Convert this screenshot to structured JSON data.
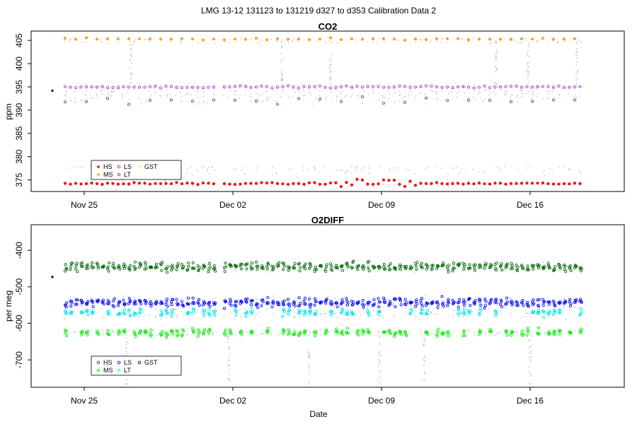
{
  "figure": {
    "title": "LMG   13-12    131123 to 131219    d327 to d353   Calibration Data 2",
    "xlabel": "Date",
    "x_ticks": [
      "Nov 25",
      "Dec 02",
      "Dec 09",
      "Dec 16"
    ]
  },
  "colors": {
    "HS": "#ff0000",
    "MS": "#ffa500",
    "LS": "#a020f0",
    "LT": "#8b3a3a",
    "GST": "#ffff00",
    "raw": "#bebebe",
    "O2_HS": "#006400",
    "O2_MS": "#00ee00",
    "O2_LS": "#0000ff",
    "O2_LT": "#00e5ee",
    "O2_GST": "#00008b"
  },
  "chart_data": [
    {
      "type": "scatter",
      "title": "CO2",
      "ylabel": "ppm",
      "xlim": [
        "2013-11-23",
        "2013-12-19"
      ],
      "ylim": [
        372.5,
        407
      ],
      "x_ticks": [
        "Nov 25",
        "Dec 02",
        "Dec 09",
        "Dec 16"
      ],
      "y_ticks": [
        375,
        380,
        385,
        390,
        395,
        400,
        405
      ],
      "grid": false,
      "legend": {
        "placement": "bottom-left",
        "entries": [
          "HS",
          "MS",
          "LS",
          "LT",
          "GST"
        ]
      },
      "series": [
        {
          "name": "HS",
          "color": "#ff0000",
          "approx_level": 374.2,
          "x_range": [
            "2013-11-24",
            "2013-12-19"
          ],
          "note_values": [
            375.0,
            374.8,
            373.9
          ]
        },
        {
          "name": "MS",
          "color": "#ffa500",
          "approx_level": 405.3,
          "x_range": [
            "2013-11-24",
            "2013-12-19"
          ]
        },
        {
          "name": "LS",
          "color": "#a020f0",
          "approx_level": 395.0,
          "x_range": [
            "2013-11-24",
            "2013-12-19"
          ]
        },
        {
          "name": "LT",
          "color": "#8b3a3a",
          "approx_level": 392.0,
          "x_range": [
            "2013-11-24",
            "2013-12-19"
          ]
        },
        {
          "name": "GST",
          "color": "#ffff00",
          "values": []
        }
      ],
      "extra_points": [
        {
          "x": "2013-11-23",
          "y": 394.2,
          "color": "#000000"
        }
      ]
    },
    {
      "type": "scatter",
      "title": "O2DIFF",
      "ylabel": "per meg",
      "xlim": [
        "2013-11-23",
        "2013-12-19"
      ],
      "ylim": [
        -775,
        -330
      ],
      "x_ticks": [
        "Nov 25",
        "Dec 02",
        "Dec 09",
        "Dec 16"
      ],
      "y_ticks": [
        -700,
        -600,
        -500,
        -400
      ],
      "grid": false,
      "legend": {
        "placement": "bottom-left",
        "entries": [
          "HS",
          "MS",
          "LS",
          "LT",
          "GST"
        ]
      },
      "series": [
        {
          "name": "HS",
          "color": "#006400",
          "approx_level": -445
        },
        {
          "name": "MS",
          "color": "#00ee00",
          "approx_level": -625
        },
        {
          "name": "LS",
          "color": "#0000ff",
          "approx_level": -543
        },
        {
          "name": "LT",
          "color": "#00e5ee",
          "approx_level": -570
        },
        {
          "name": "GST",
          "color": "#00008b",
          "values": []
        }
      ],
      "extra_points": [
        {
          "x": "2013-11-23",
          "y": -473,
          "color": "#000000"
        }
      ]
    }
  ]
}
